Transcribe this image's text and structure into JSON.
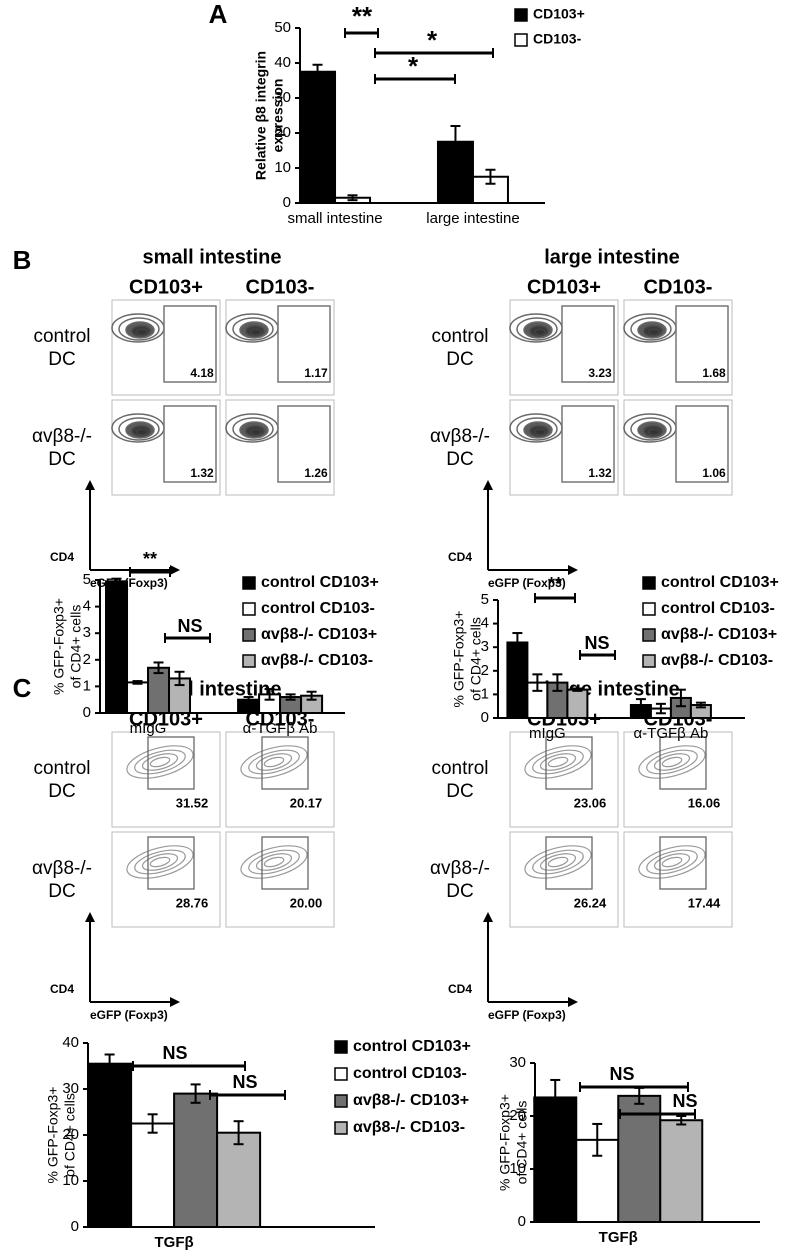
{
  "panel_labels": [
    "A",
    "B",
    "C"
  ],
  "chart_data": [
    {
      "type": "bar",
      "ylabel": [
        "Relative β8 integrin",
        "expression"
      ],
      "categories": [
        "small intestine",
        "large intestine"
      ],
      "ylim": [
        0,
        50
      ],
      "yticks": [
        0,
        10,
        20,
        30,
        40,
        50
      ],
      "legend": true,
      "series": [
        {
          "name": "CD103+",
          "color": "#000000",
          "values": [
            37.5,
            17.5
          ],
          "errors": [
            2,
            4.5
          ]
        },
        {
          "name": "CD103-",
          "color": "#ffffff",
          "values": [
            1.5,
            7.5
          ],
          "errors": [
            0.7,
            2
          ]
        }
      ],
      "annotations": [
        "**",
        "*",
        "*"
      ]
    },
    {
      "type": "bar",
      "ylabel": [
        "% GFP-Foxp3+",
        "of CD4+ cells"
      ],
      "categories": [
        "mIgG",
        "α-TGFβ Ab"
      ],
      "ylim": [
        0,
        5
      ],
      "yticks": [
        0,
        1,
        2,
        3,
        4,
        5
      ],
      "legend": true,
      "series": [
        {
          "name": "control CD103+",
          "color": "#000000",
          "values": [
            4.95,
            0.5
          ],
          "errors": [
            0.1,
            0.1
          ]
        },
        {
          "name": "control CD103-",
          "color": "#ffffff",
          "values": [
            1.15,
            0.7
          ],
          "errors": [
            0.05,
            0.2
          ]
        },
        {
          "name": "αvβ8-/- CD103+",
          "color": "#707070",
          "values": [
            1.7,
            0.6
          ],
          "errors": [
            0.2,
            0.1
          ]
        },
        {
          "name": "αvβ8-/- CD103-",
          "color": "#b4b4b4",
          "values": [
            1.3,
            0.65
          ],
          "errors": [
            0.25,
            0.15
          ]
        }
      ],
      "annotations": [
        "**",
        "NS"
      ]
    },
    {
      "type": "bar",
      "ylabel": [
        "% GFP-Foxp3+",
        "of CD4+ cells"
      ],
      "categories": [
        "mIgG",
        "α-TGFβ Ab"
      ],
      "ylim": [
        0,
        5
      ],
      "yticks": [
        0,
        1,
        2,
        3,
        4,
        5
      ],
      "legend": true,
      "series": [
        {
          "name": "control CD103+",
          "color": "#000000",
          "values": [
            3.2,
            0.55
          ],
          "errors": [
            0.4,
            0.25
          ]
        },
        {
          "name": "control CD103-",
          "color": "#ffffff",
          "values": [
            1.5,
            0.4
          ],
          "errors": [
            0.35,
            0.2
          ]
        },
        {
          "name": "αvβ8-/- CD103+",
          "color": "#707070",
          "values": [
            1.5,
            0.85
          ],
          "errors": [
            0.35,
            0.35
          ]
        },
        {
          "name": "αvβ8-/- CD103-",
          "color": "#b4b4b4",
          "values": [
            1.2,
            0.55
          ],
          "errors": [
            0.05,
            0.1
          ]
        }
      ],
      "annotations": [
        "**",
        "NS"
      ]
    },
    {
      "type": "bar",
      "ylabel": [
        "% GFP-Foxp3+",
        "of CD4+ cells"
      ],
      "categories": [
        "TGFβ"
      ],
      "ylim": [
        0,
        40
      ],
      "yticks": [
        0,
        10,
        20,
        30,
        40
      ],
      "legend": true,
      "series": [
        {
          "name": "control CD103+",
          "color": "#000000",
          "values": [
            35.5
          ],
          "errors": [
            2
          ]
        },
        {
          "name": "control CD103-",
          "color": "#ffffff",
          "values": [
            22.5
          ],
          "errors": [
            2
          ]
        },
        {
          "name": "αvβ8-/- CD103+",
          "color": "#707070",
          "values": [
            29
          ],
          "errors": [
            2
          ]
        },
        {
          "name": "αvβ8-/- CD103-",
          "color": "#b4b4b4",
          "values": [
            20.5
          ],
          "errors": [
            2.5
          ]
        }
      ],
      "annotations": [
        "NS",
        "NS"
      ]
    },
    {
      "type": "bar",
      "ylabel": [
        "% GFP-Foxp3+",
        "of CD4+ cells"
      ],
      "categories": [
        "TGFβ"
      ],
      "ylim": [
        0,
        30
      ],
      "yticks": [
        0,
        10,
        20,
        30
      ],
      "legend": false,
      "series": [
        {
          "color": "#000000",
          "values": [
            23.5
          ],
          "errors": [
            3.3
          ]
        },
        {
          "color": "#ffffff",
          "values": [
            15.5
          ],
          "errors": [
            3
          ]
        },
        {
          "color": "#707070",
          "values": [
            23.8
          ],
          "errors": [
            1.5
          ]
        },
        {
          "color": "#b4b4b4",
          "values": [
            19.2
          ],
          "errors": [
            0.8
          ]
        }
      ],
      "annotations": [
        "NS",
        "NS"
      ]
    }
  ],
  "flow": [
    {
      "title": "small intestine",
      "columns": [
        "CD103+",
        "CD103-"
      ],
      "rows": [
        [
          "control",
          "DC"
        ],
        [
          "αvβ8-/-",
          "DC"
        ]
      ],
      "gates": [
        [
          "4.18",
          "1.17"
        ],
        [
          "1.32",
          "1.26"
        ]
      ],
      "y_axis": "CD4",
      "x_axis": "eGFP (Foxp3)"
    },
    {
      "title": "large intestine",
      "columns": [
        "CD103+",
        "CD103-"
      ],
      "rows": [
        [
          "control",
          "DC"
        ],
        [
          "αvβ8-/-",
          "DC"
        ]
      ],
      "gates": [
        [
          "3.23",
          "1.68"
        ],
        [
          "1.32",
          "1.06"
        ]
      ],
      "y_axis": "CD4",
      "x_axis": "eGFP (Foxp3)"
    },
    {
      "title": "small intestine",
      "columns": [
        "CD103+",
        "CD103-"
      ],
      "rows": [
        [
          "control",
          "DC"
        ],
        [
          "αvβ8-/-",
          "DC"
        ]
      ],
      "gates": [
        [
          "31.52",
          "20.17"
        ],
        [
          "28.76",
          "20.00"
        ]
      ],
      "y_axis": "CD4",
      "x_axis": "eGFP (Foxp3)"
    },
    {
      "title": "large intestine",
      "columns": [
        "CD103+",
        "CD103-"
      ],
      "rows": [
        [
          "control",
          "DC"
        ],
        [
          "αvβ8-/-",
          "DC"
        ]
      ],
      "gates": [
        [
          "23.06",
          "16.06"
        ],
        [
          "26.24",
          "17.44"
        ]
      ],
      "y_axis": "CD4",
      "x_axis": "eGFP (Foxp3)"
    }
  ]
}
